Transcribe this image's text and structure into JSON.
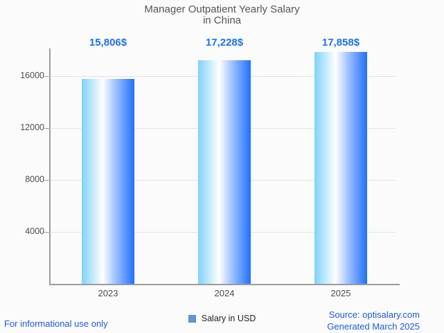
{
  "title": {
    "line1": "Manager Outpatient Yearly Salary",
    "line2": "in China"
  },
  "chart_data": {
    "type": "bar",
    "title": "Manager Outpatient Yearly Salary in China",
    "categories": [
      "2023",
      "2024",
      "2025"
    ],
    "series": [
      {
        "name": "Salary in USD",
        "values": [
          15806,
          17228,
          17858
        ]
      }
    ],
    "value_labels": [
      "15,806$",
      "17,228$",
      "17,858$"
    ],
    "xlabel": "",
    "ylabel": "",
    "y_ticks": [
      4000,
      8000,
      12000,
      16000
    ],
    "y_tick_labels": [
      "4000",
      "8000",
      "12000",
      "16000"
    ],
    "ylim": [
      0,
      18133
    ],
    "grid": true,
    "legend_position": "bottom"
  },
  "legend": {
    "label": "Salary in USD",
    "swatch_color": "#4f9be8"
  },
  "footer": {
    "left": "For informational use only",
    "source": "Source: optisalary.com",
    "generated": "Generated March 2025"
  },
  "colors": {
    "background": "#fbfbfb",
    "accent_blue": "#1a73e8",
    "footer_link_blue": "#1b5adf",
    "axis_gray": "#9c9c9c",
    "gridline_gray": "#e3e3e3",
    "text_gray": "#4d4d4f",
    "bar_gradient": [
      "#7fd2f9",
      "#ffffff",
      "#9cbfff",
      "#2170fd"
    ]
  }
}
